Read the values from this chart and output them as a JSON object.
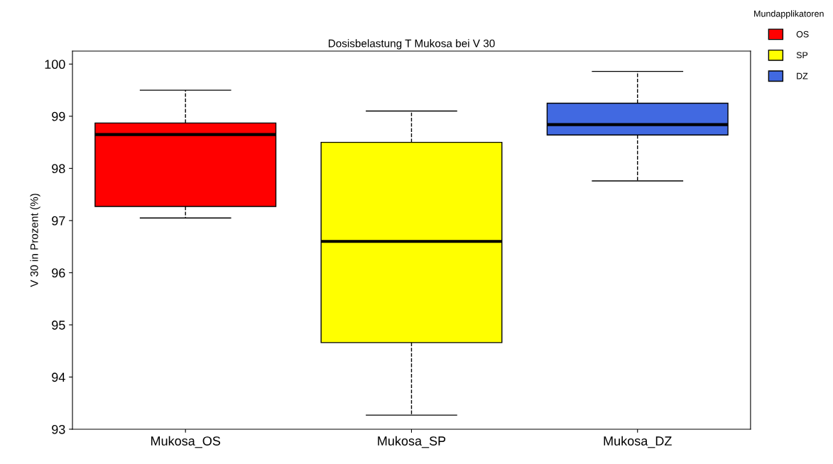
{
  "chart_data": {
    "type": "box",
    "title": "Dosisbelastung T Mukosa bei V 30",
    "ylabel": "V 30 in Prozent (%)",
    "legend_title": "Mundapplikatoren",
    "categories": [
      "Mukosa_OS",
      "Mukosa_SP",
      "Mukosa_DZ"
    ],
    "series": [
      {
        "name": "OS",
        "color": "#ff0000",
        "boxes": [
          {
            "low": 97.05,
            "q1": 97.27,
            "median": 98.65,
            "q3": 98.87,
            "high": 99.5
          },
          null,
          null
        ]
      },
      {
        "name": "SP",
        "color": "#ffff00",
        "boxes": [
          null,
          {
            "low": 93.27,
            "q1": 94.66,
            "median": 96.6,
            "q3": 98.5,
            "high": 99.1
          },
          null
        ]
      },
      {
        "name": "DZ",
        "color": "#4169e1",
        "boxes": [
          null,
          null,
          {
            "low": 97.76,
            "q1": 98.64,
            "median": 98.84,
            "q3": 99.25,
            "high": 99.86
          }
        ]
      }
    ],
    "ylim": [
      93,
      100.25
    ],
    "yticks": [
      93,
      94,
      95,
      96,
      97,
      98,
      99,
      100
    ],
    "grid": false,
    "legend": "top right",
    "line_style": "dashed"
  }
}
